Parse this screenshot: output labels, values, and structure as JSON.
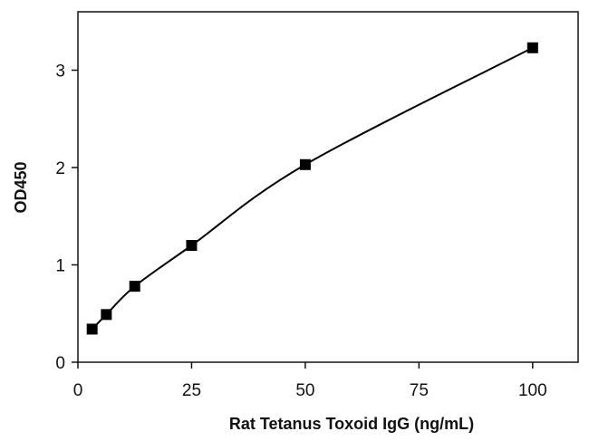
{
  "chart_data": {
    "type": "scatter",
    "title": "",
    "xlabel": "Rat Tetanus Toxoid IgG (ng/mL)",
    "ylabel": "OD450",
    "xlim": [
      0,
      110
    ],
    "ylim": [
      0,
      3.6
    ],
    "xticks": [
      0,
      25,
      50,
      75,
      100
    ],
    "yticks": [
      0,
      1,
      2,
      3
    ],
    "grid": false,
    "legend": "none",
    "series": [
      {
        "marker": "square",
        "color": "#000000",
        "x": [
          3.125,
          6.25,
          12.5,
          25,
          50,
          100
        ],
        "y": [
          0.34,
          0.49,
          0.78,
          1.2,
          2.03,
          3.23
        ]
      }
    ],
    "fit_curve": {
      "type": "smooth",
      "color": "#000000"
    }
  }
}
